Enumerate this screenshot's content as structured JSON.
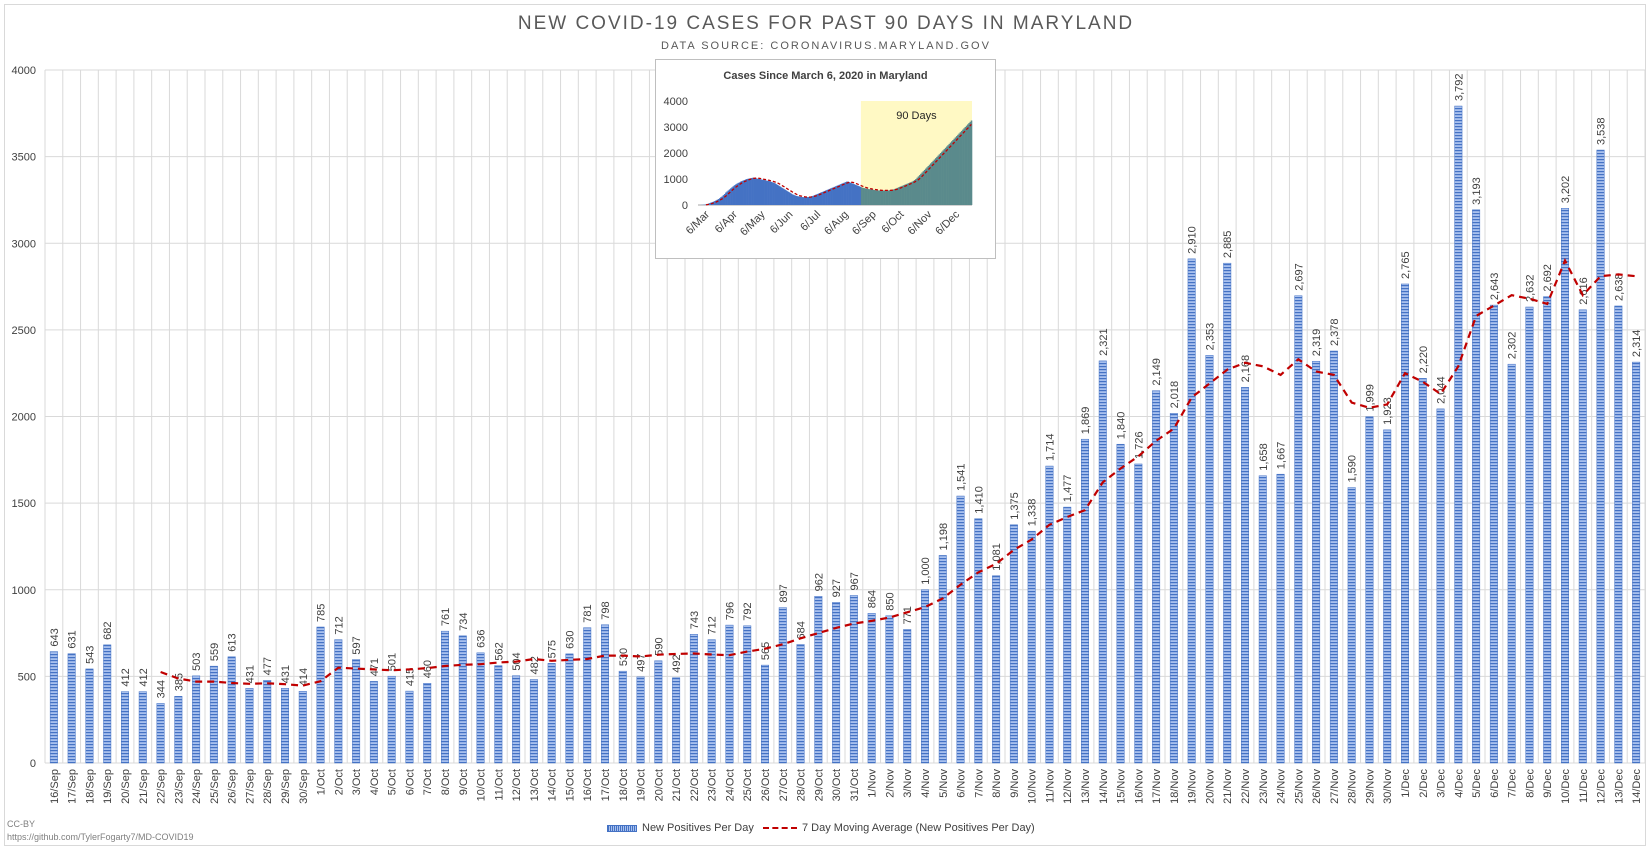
{
  "header": {
    "title": "NEW COVID-19 CASES FOR PAST 90 DAYS IN MARYLAND",
    "subtitle": "DATA SOURCE: CORONAVIRUS.MARYLAND.GOV"
  },
  "legend": {
    "bars_label": "New Positives Per Day",
    "line_label": "7 Day Moving Average (New Positives Per Day)"
  },
  "credits": {
    "license": "CC-BY",
    "repo": "https://github.com/TylerFogarty7/MD-COVID19"
  },
  "colors": {
    "bar": "#4472c4",
    "bar_light": "#a9c1ee",
    "moving_average": "#c00000",
    "grid": "#d9d9d9",
    "inset_highlight": "#fff9c4"
  },
  "chart_data": [
    {
      "type": "bar",
      "title": "NEW COVID-19 CASES FOR PAST 90 DAYS IN MARYLAND",
      "subtitle": "DATA SOURCE: CORONAVIRUS.MARYLAND.GOV",
      "xlabel": "",
      "ylabel": "",
      "ylim": [
        0,
        4000
      ],
      "yticks": [
        0,
        500,
        1000,
        1500,
        2000,
        2500,
        3000,
        3500,
        4000
      ],
      "grid": true,
      "legend_position": "bottom",
      "categories": [
        "16/Sep",
        "17/Sep",
        "18/Sep",
        "19/Sep",
        "20/Sep",
        "21/Sep",
        "22/Sep",
        "23/Sep",
        "24/Sep",
        "25/Sep",
        "26/Sep",
        "27/Sep",
        "28/Sep",
        "29/Sep",
        "30/Sep",
        "1/Oct",
        "2/Oct",
        "3/Oct",
        "4/Oct",
        "5/Oct",
        "6/Oct",
        "7/Oct",
        "8/Oct",
        "9/Oct",
        "10/Oct",
        "11/Oct",
        "12/Oct",
        "13/Oct",
        "14/Oct",
        "15/Oct",
        "16/Oct",
        "17/Oct",
        "18/Oct",
        "19/Oct",
        "20/Oct",
        "21/Oct",
        "22/Oct",
        "23/Oct",
        "24/Oct",
        "25/Oct",
        "26/Oct",
        "27/Oct",
        "28/Oct",
        "29/Oct",
        "30/Oct",
        "31/Oct",
        "1/Nov",
        "2/Nov",
        "3/Nov",
        "4/Nov",
        "5/Nov",
        "6/Nov",
        "7/Nov",
        "8/Nov",
        "9/Nov",
        "10/Nov",
        "11/Nov",
        "12/Nov",
        "13/Nov",
        "14/Nov",
        "15/Nov",
        "16/Nov",
        "17/Nov",
        "18/Nov",
        "19/Nov",
        "20/Nov",
        "21/Nov",
        "22/Nov",
        "23/Nov",
        "24/Nov",
        "25/Nov",
        "26/Nov",
        "27/Nov",
        "28/Nov",
        "29/Nov",
        "30/Nov",
        "1/Dec",
        "2/Dec",
        "3/Dec",
        "4/Dec",
        "5/Dec",
        "6/Dec",
        "7/Dec",
        "8/Dec",
        "9/Dec",
        "10/Dec",
        "11/Dec",
        "12/Dec",
        "13/Dec",
        "14/Dec"
      ],
      "series": [
        {
          "name": "New Positives Per Day",
          "values": [
            643,
            631,
            543,
            682,
            412,
            412,
            344,
            385,
            503,
            559,
            613,
            431,
            477,
            431,
            414,
            785,
            712,
            597,
            471,
            501,
            415,
            460,
            761,
            734,
            636,
            562,
            504,
            482,
            575,
            630,
            781,
            798,
            530,
            497,
            590,
            492,
            743,
            712,
            796,
            792,
            565,
            897,
            684,
            962,
            927,
            967,
            864,
            850,
            771,
            1000,
            1198,
            1541,
            1410,
            1081,
            1375,
            1338,
            1714,
            1477,
            1869,
            2321,
            1840,
            1726,
            2149,
            2018,
            2910,
            2353,
            2885,
            2168,
            1658,
            1667,
            2697,
            2319,
            2378,
            1590,
            1999,
            1923,
            2765,
            2220,
            2044,
            3792,
            3193,
            2643,
            2302,
            2632,
            2692,
            3202,
            2616,
            3538,
            2638,
            2314
          ],
          "labels": [
            "643",
            "631",
            "543",
            "682",
            "412",
            "412",
            "344",
            "385",
            "503",
            "559",
            "613",
            "431",
            "477",
            "431",
            "414",
            "785",
            "712",
            "597",
            "471",
            "501",
            "415",
            "460",
            "761",
            "734",
            "636",
            "562",
            "504",
            "482",
            "575",
            "630",
            "781",
            "798",
            "530",
            "497",
            "590",
            "492",
            "743",
            "712",
            "796",
            "792",
            "565",
            "897",
            "684",
            "962",
            "927",
            "967",
            "864",
            "850",
            "771",
            "1,000",
            "1,198",
            "1,541",
            "1,410",
            "1,081",
            "1,375",
            "1,338",
            "1,714",
            "1,477",
            "1,869",
            "2,321",
            "1,840",
            "1,726",
            "2,149",
            "2,018",
            "2,910",
            "2,353",
            "2,885",
            "2,168",
            "1,658",
            "1,667",
            "2,697",
            "2,319",
            "2,378",
            "1,590",
            "1,999",
            "1,923",
            "2,765",
            "2,220",
            "2,044",
            "3,792",
            "3,193",
            "2,643",
            "2,302",
            "2,632",
            "2,692",
            "3,202",
            "2,616",
            "3,538",
            "2,638",
            "2,314"
          ]
        },
        {
          "name": "7 Day Moving Average (New Positives Per Day)",
          "type": "line",
          "style": "dashed",
          "values": [
            null,
            null,
            null,
            null,
            null,
            null,
            525,
            488,
            470,
            470,
            462,
            457,
            460,
            455,
            447,
            472,
            550,
            545,
            540,
            535,
            540,
            548,
            560,
            567,
            570,
            580,
            585,
            600,
            590,
            595,
            600,
            620,
            620,
            615,
            625,
            630,
            632,
            626,
            622,
            643,
            660,
            685,
            720,
            750,
            780,
            805,
            820,
            840,
            870,
            900,
            950,
            1030,
            1100,
            1150,
            1230,
            1290,
            1375,
            1420,
            1460,
            1620,
            1700,
            1770,
            1860,
            1930,
            2110,
            2190,
            2270,
            2310,
            2290,
            2240,
            2330,
            2260,
            2240,
            2080,
            2050,
            2070,
            2250,
            2200,
            2130,
            2290,
            2580,
            2640,
            2700,
            2680,
            2650,
            2900,
            2700,
            2810,
            2820,
            2810
          ]
        }
      ]
    },
    {
      "type": "bar",
      "title": "Cases Since March 6, 2020 in Maryland",
      "ylim": [
        0,
        4000
      ],
      "yticks": [
        0,
        1000,
        2000,
        3000,
        4000
      ],
      "xticks": [
        "6/Mar",
        "6/Apr",
        "6/May",
        "6/Jun",
        "6/Jul",
        "6/Aug",
        "6/Sep",
        "6/Oct",
        "6/Nov",
        "6/Dec"
      ],
      "highlight_label": "90 Days",
      "series": [
        {
          "name": "New Positives Per Day",
          "values": [
            0,
            0,
            3,
            6,
            10,
            15,
            25,
            40,
            55,
            75,
            95,
            110,
            130,
            150,
            175,
            200,
            230,
            260,
            300,
            330,
            380,
            420,
            480,
            520,
            560,
            600,
            640,
            680,
            720,
            760,
            790,
            820,
            850,
            870,
            900,
            920,
            940,
            960,
            980,
            1000,
            1010,
            1020,
            1030,
            1040,
            1050,
            1040,
            1030,
            1020,
            1010,
            1000,
            990,
            980,
            970,
            960,
            950,
            940,
            930,
            920,
            905,
            890,
            870,
            850,
            830,
            800,
            770,
            740,
            710,
            680,
            650,
            620,
            590,
            560,
            530,
            500,
            470,
            440,
            410,
            390,
            370,
            350,
            340,
            330,
            320,
            310,
            305,
            300,
            300,
            300,
            305,
            310,
            320,
            330,
            345,
            360,
            380,
            400,
            420,
            440,
            460,
            480,
            500,
            520,
            540,
            560,
            580,
            600,
            620,
            640,
            660,
            680,
            700,
            720,
            740,
            760,
            780,
            800,
            820,
            840,
            860,
            880,
            900,
            900,
            880,
            860,
            840,
            820,
            800,
            780,
            760,
            740,
            720,
            700,
            680,
            660,
            650,
            640,
            630,
            620,
            610,
            600,
            600,
            590,
            580,
            570,
            560,
            560,
            560,
            560,
            560,
            560,
            560,
            560,
            560,
            560,
            560,
            570,
            580,
            590,
            600,
            620,
            640,
            660,
            680,
            700,
            720,
            740,
            760,
            780,
            800,
            820,
            840,
            860,
            880,
            900,
            930,
            960,
            1000,
            1050,
            1100,
            1150,
            1200,
            1250,
            1300,
            1350,
            1400,
            1450,
            1500,
            1550,
            1600,
            1650,
            1700,
            1750,
            1800,
            1850,
            1900,
            1950,
            2000,
            2050,
            2100,
            2150,
            2200,
            2250,
            2300,
            2350,
            2400,
            2450,
            2500,
            2550,
            2600,
            2650,
            2700,
            2750,
            2800,
            2850,
            2900,
            2950,
            3000,
            3050,
            3100,
            3150,
            3200,
            3250
          ]
        }
      ]
    }
  ]
}
